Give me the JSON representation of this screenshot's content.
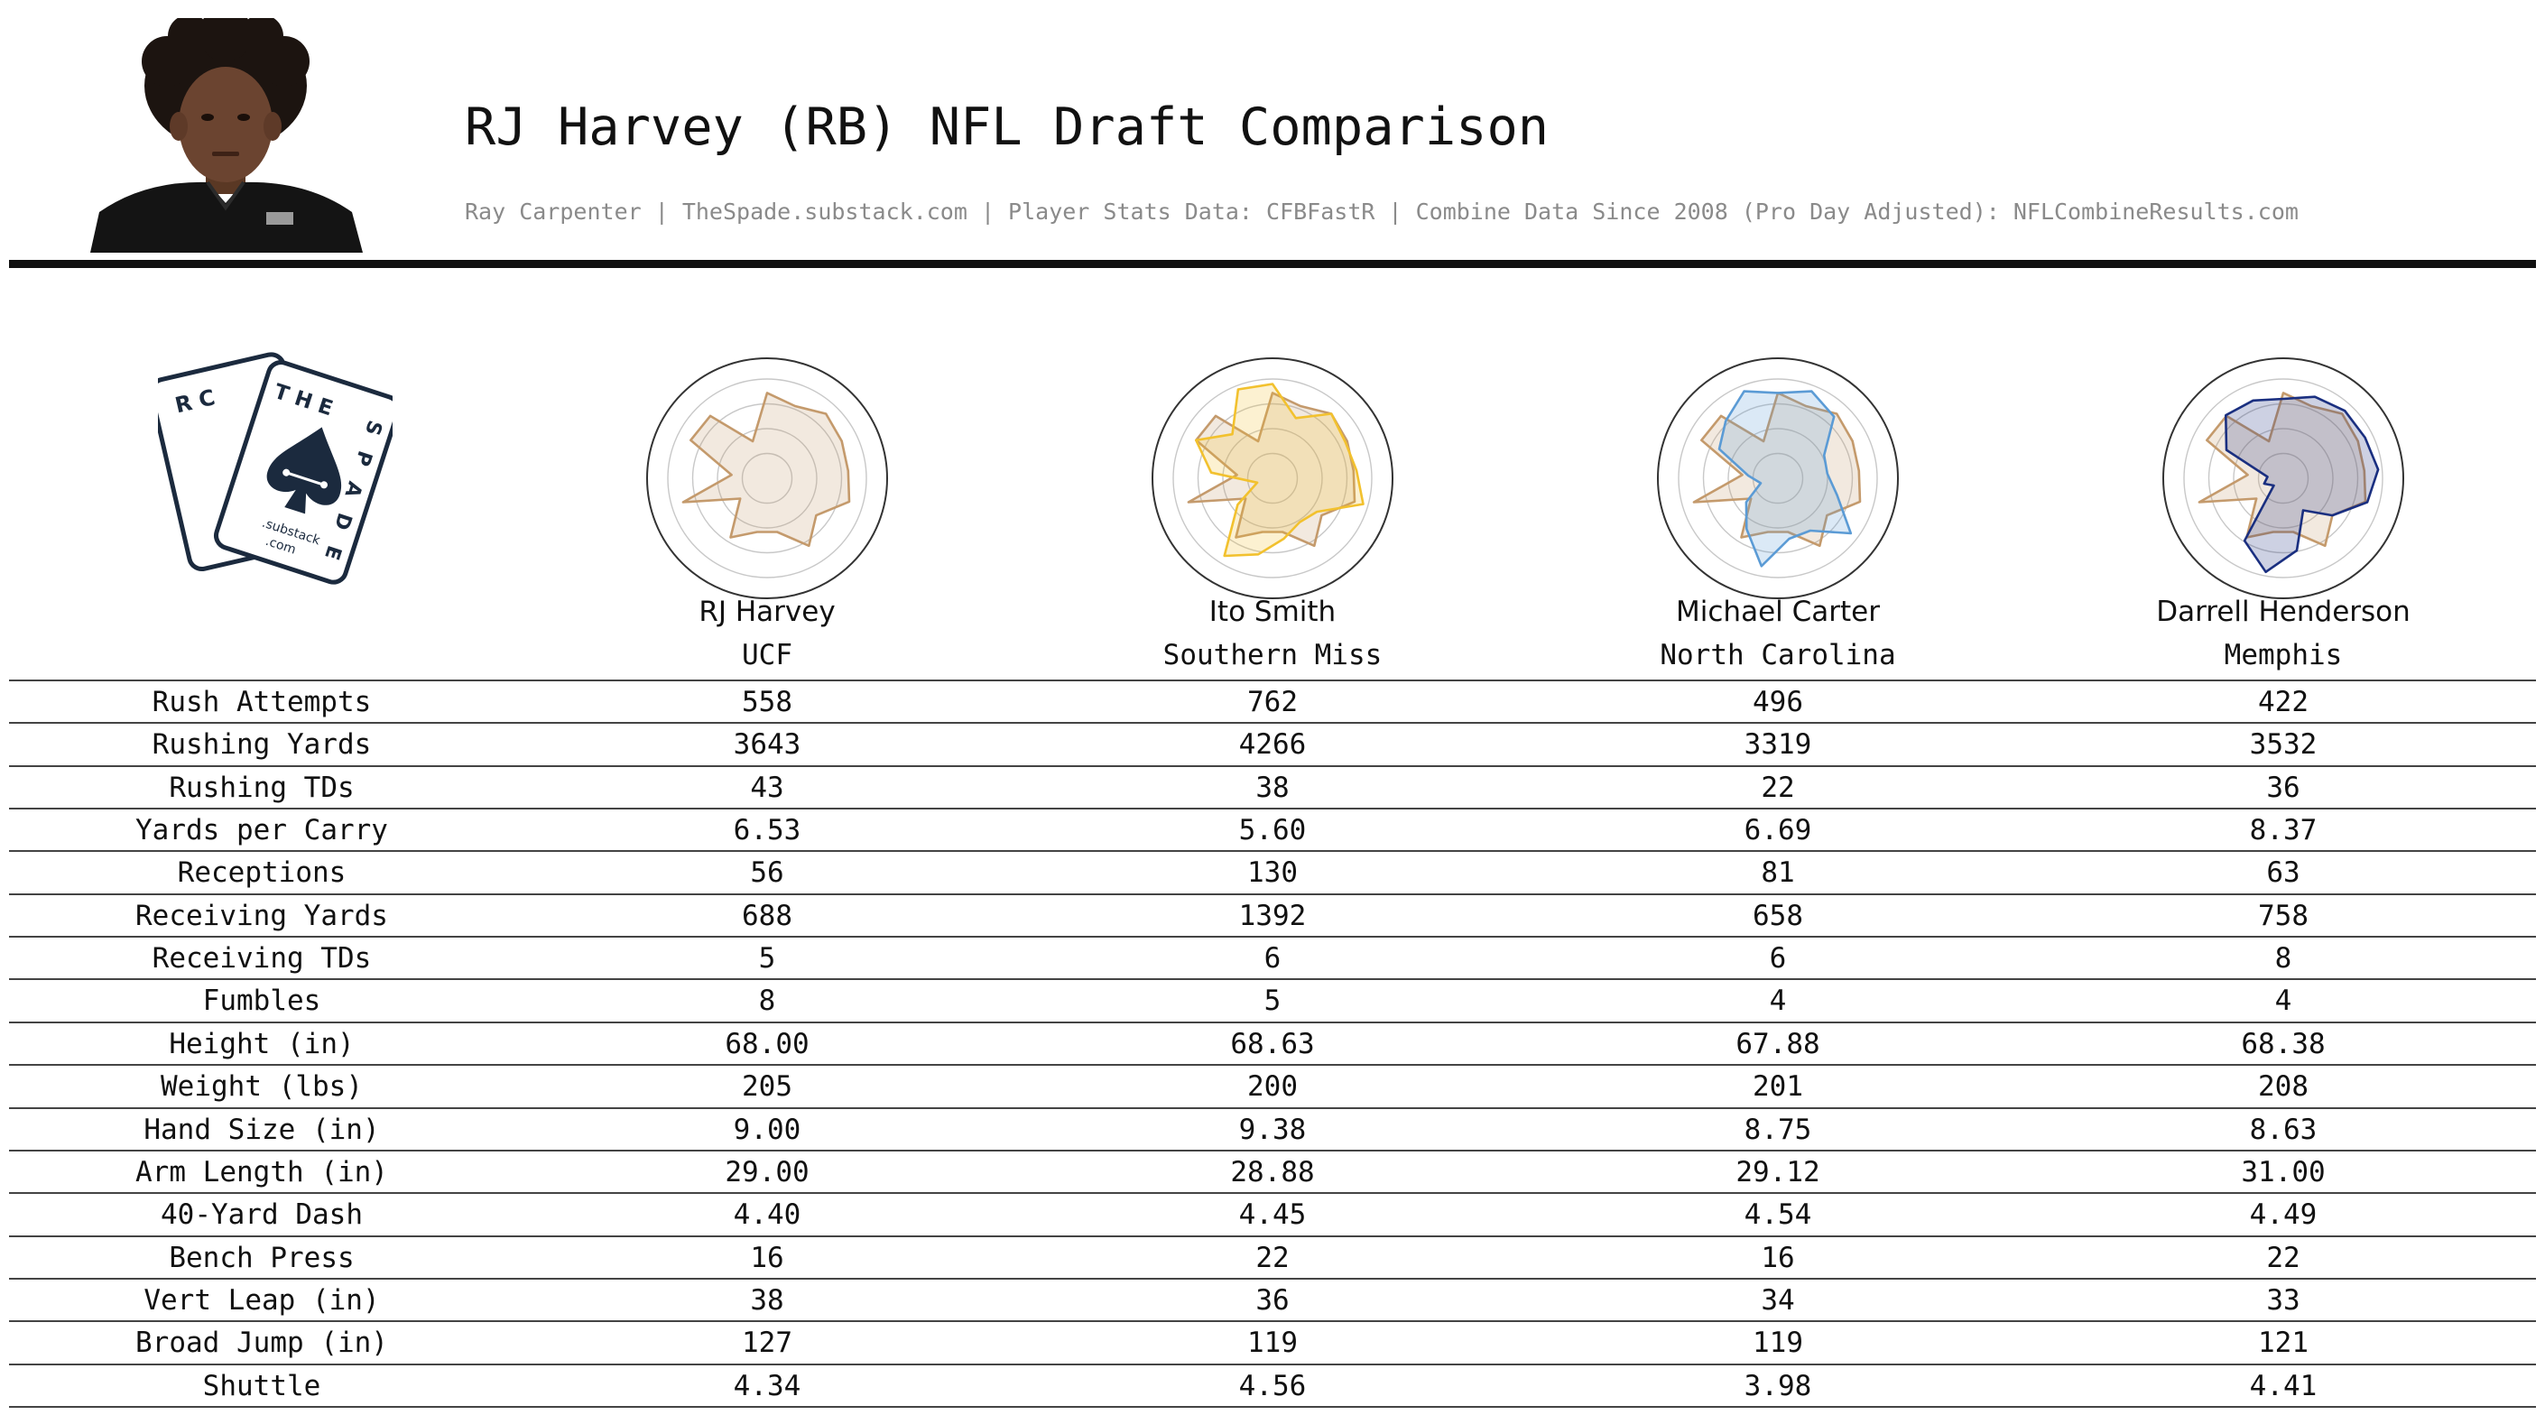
{
  "header": {
    "title": "RJ Harvey (RB) NFL Draft Comparison",
    "subtitle": "Ray Carpenter | TheSpade.substack.com | Player Stats Data: CFBFastR | Combine Data Since 2008 (Pro Day Adjusted): NFLCombineResults.com"
  },
  "logo": {
    "card_back_letters": "R C",
    "card_front_letters": "T H E",
    "card_side_letters": "S P A D E",
    "domain_line1": ".substack",
    "domain_line2": ".com"
  },
  "colors": {
    "base_player": "#c49a6c",
    "ito_smith": "#f2c12e",
    "michael_carter": "#5b9bd5",
    "darrell_henderson": "#1a2f80"
  },
  "players": [
    {
      "name": "RJ Harvey",
      "school": "UCF"
    },
    {
      "name": "Ito Smith",
      "school": "Southern Miss"
    },
    {
      "name": "Michael Carter",
      "school": "North Carolina"
    },
    {
      "name": "Darrell Henderson",
      "school": "Memphis"
    }
  ],
  "chart_data": {
    "type": "table",
    "columns": [
      "RJ Harvey",
      "Ito Smith",
      "Michael Carter",
      "Darrell Henderson"
    ],
    "rows": [
      {
        "label": "Rush Attempts",
        "values": [
          "558",
          "762",
          "496",
          "422"
        ]
      },
      {
        "label": "Rushing Yards",
        "values": [
          "3643",
          "4266",
          "3319",
          "3532"
        ]
      },
      {
        "label": "Rushing TDs",
        "values": [
          "43",
          "38",
          "22",
          "36"
        ]
      },
      {
        "label": "Yards per Carry",
        "values": [
          "6.53",
          "5.60",
          "6.69",
          "8.37"
        ]
      },
      {
        "label": "Receptions",
        "values": [
          "56",
          "130",
          "81",
          "63"
        ]
      },
      {
        "label": "Receiving Yards",
        "values": [
          "688",
          "1392",
          "658",
          "758"
        ]
      },
      {
        "label": "Receiving TDs",
        "values": [
          "5",
          "6",
          "6",
          "8"
        ]
      },
      {
        "label": "Fumbles",
        "values": [
          "8",
          "5",
          "4",
          "4"
        ]
      },
      {
        "label": "Height (in)",
        "values": [
          "68.00",
          "68.63",
          "67.88",
          "68.38"
        ]
      },
      {
        "label": "Weight (lbs)",
        "values": [
          "205",
          "200",
          "201",
          "208"
        ]
      },
      {
        "label": "Hand Size (in)",
        "values": [
          "9.00",
          "9.38",
          "8.75",
          "8.63"
        ]
      },
      {
        "label": "Arm Length (in)",
        "values": [
          "29.00",
          "28.88",
          "29.12",
          "31.00"
        ]
      },
      {
        "label": "40-Yard Dash",
        "values": [
          "4.40",
          "4.45",
          "4.54",
          "4.49"
        ]
      },
      {
        "label": "Bench Press",
        "values": [
          "16",
          "22",
          "16",
          "22"
        ]
      },
      {
        "label": "Vert Leap (in)",
        "values": [
          "38",
          "36",
          "34",
          "33"
        ]
      },
      {
        "label": "Broad Jump (in)",
        "values": [
          "127",
          "119",
          "119",
          "121"
        ]
      },
      {
        "label": "Shuttle",
        "values": [
          "4.34",
          "4.56",
          "3.98",
          "4.41"
        ]
      }
    ],
    "radar": {
      "type": "radar",
      "axes": [
        "Rush Attempts",
        "Rushing Yards",
        "Rushing TDs",
        "Yards per Carry",
        "Receptions",
        "Receiving Yards",
        "Receiving TDs",
        "Fumbles",
        "Height (in)",
        "Weight (lbs)",
        "Hand Size (in)",
        "Arm Length (in)",
        "40-Yard Dash",
        "Bench Press",
        "Vert Leap (in)",
        "Broad Jump (in)",
        "Shuttle"
      ],
      "range": [
        0,
        1
      ],
      "rings": 4,
      "series": [
        {
          "player": "RJ Harvey",
          "values": [
            0.86,
            0.78,
            0.88,
            0.84,
            0.82,
            0.86,
            0.62,
            0.8,
            0.55,
            0.55,
            0.7,
            0.34,
            0.88,
            0.36,
            0.86,
            0.85,
            0.4
          ]
        },
        {
          "player": "Ito Smith",
          "values": [
            0.95,
            0.65,
            0.88,
            0.82,
            0.85,
            0.95,
            0.56,
            0.52,
            0.62,
            0.78,
            0.92,
            0.44,
            0.16,
            0.62,
            0.86,
            0.6,
            0.96
          ]
        },
        {
          "player": "Michael Carter",
          "values": [
            0.86,
            0.94,
            0.84,
            0.52,
            0.5,
            0.62,
            0.92,
            0.62,
            0.62,
            0.9,
            0.6,
            0.4,
            0.18,
            0.3,
            0.66,
            0.78,
            0.94
          ]
        },
        {
          "player": "Darrell Henderson",
          "values": [
            0.8,
            0.88,
            0.92,
            0.92,
            0.96,
            0.88,
            0.62,
            0.38,
            0.74,
            0.96,
            0.74,
            0.12,
            0.2,
            0.16,
            0.64,
            0.86,
            0.84
          ]
        }
      ]
    }
  }
}
